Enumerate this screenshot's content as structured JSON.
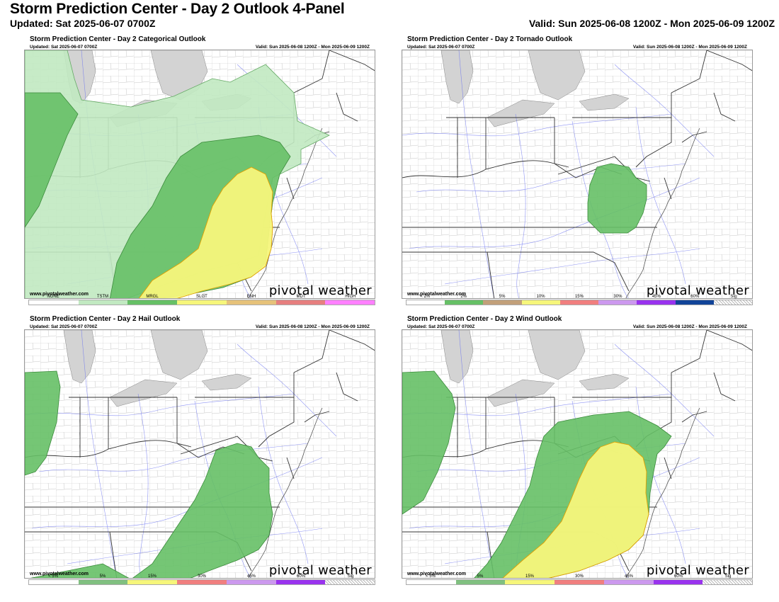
{
  "header": {
    "title": "Storm Prediction Center - Day 2 Outlook 4-Panel",
    "updated": "Updated: Sat 2025-06-07 0700Z",
    "valid": "Valid: Sun 2025-06-08 1200Z - Mon 2025-06-09 1200Z"
  },
  "panel_common": {
    "updated": "Updated: Sat 2025-06-07 0700Z",
    "valid": "Valid: Sun 2025-06-08 1200Z - Mon 2025-06-09 1200Z",
    "website": "www.pivotalweather.com",
    "brand": "pivotal weather"
  },
  "colors": {
    "tstm": "#c1e9c1",
    "mrgl": "#66c066",
    "slgt": "#f6f67b",
    "lake": "#d3d3d3",
    "county": "#b8b8b8",
    "state": "#333333",
    "roads": "#6a72f0"
  },
  "panels": {
    "categorical": {
      "title": "Storm Prediction Center - Day 2 Categorical Outlook",
      "legend": [
        {
          "label": "NONE",
          "color": "#ffffff"
        },
        {
          "label": "TSTM",
          "color": "#c1e9c1"
        },
        {
          "label": "MRGL",
          "color": "#66c066"
        },
        {
          "label": "SLGT",
          "color": "#f6f67b"
        },
        {
          "label": "ENH",
          "color": "#e6c27a"
        },
        {
          "label": "MDT",
          "color": "#e67f7f"
        },
        {
          "label": "HIGH",
          "color": "#ff80ff"
        }
      ]
    },
    "tornado": {
      "title": "Storm Prediction Center - Day 2 Tornado Outlook",
      "legend": [
        {
          "label": "< 2%",
          "color": "#ffffff"
        },
        {
          "label": "2%",
          "color": "#66c066"
        },
        {
          "label": "5%",
          "color": "#c2a07a"
        },
        {
          "label": "10%",
          "color": "#f6f67b"
        },
        {
          "label": "15%",
          "color": "#f07f7f"
        },
        {
          "label": "30%",
          "color": "#cc99ee"
        },
        {
          "label": "45%",
          "color": "#9933ee"
        },
        {
          "label": "60%",
          "color": "#114499"
        },
        {
          "label": "Sig",
          "color": "hatch"
        }
      ]
    },
    "hail": {
      "title": "Storm Prediction Center - Day 2 Hail Outlook",
      "legend": [
        {
          "label": "< 5%",
          "color": "#ffffff"
        },
        {
          "label": "5%",
          "color": "#80c080"
        },
        {
          "label": "15%",
          "color": "#f6f67b"
        },
        {
          "label": "30%",
          "color": "#f07f7f"
        },
        {
          "label": "45%",
          "color": "#cc99ee"
        },
        {
          "label": "60%",
          "color": "#9933ee"
        },
        {
          "label": "Sig",
          "color": "hatch"
        }
      ]
    },
    "wind": {
      "title": "Storm Prediction Center - Day 2 Wind Outlook",
      "legend": [
        {
          "label": "< 5%",
          "color": "#ffffff"
        },
        {
          "label": "5%",
          "color": "#80c080"
        },
        {
          "label": "15%",
          "color": "#f6f67b"
        },
        {
          "label": "30%",
          "color": "#f07f7f"
        },
        {
          "label": "45%",
          "color": "#cc99ee"
        },
        {
          "label": "60%",
          "color": "#9933ee"
        },
        {
          "label": "Sig",
          "color": "hatch"
        }
      ]
    }
  }
}
